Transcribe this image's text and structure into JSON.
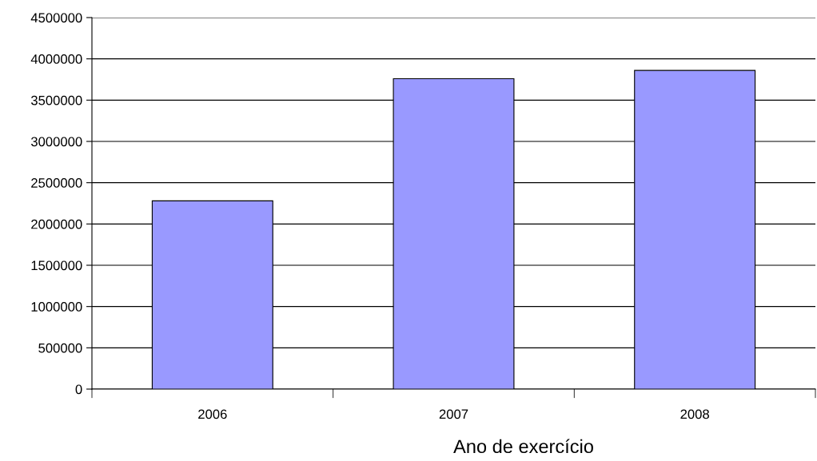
{
  "chart_data": {
    "type": "bar",
    "xlabel": "Ano de exercício",
    "categories": [
      "2006",
      "2007",
      "2008"
    ],
    "values": [
      2280000,
      3760000,
      3860000
    ],
    "color": "#9999ff",
    "ylim": [
      0,
      4500000
    ],
    "yticks": [
      0,
      500000,
      1000000,
      1500000,
      2000000,
      2500000,
      3000000,
      3500000,
      4000000,
      4500000
    ],
    "grid": "y",
    "legend": false
  }
}
